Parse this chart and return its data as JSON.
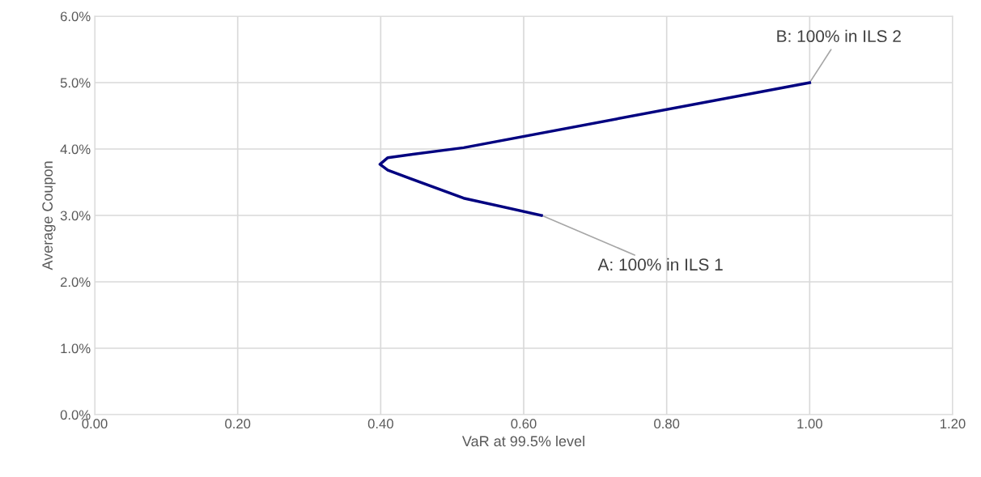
{
  "chart_data": {
    "type": "line",
    "xlabel": "VaR at 99.5% level",
    "ylabel": "Average Coupon",
    "series": [
      {
        "color": "#000080",
        "x": [
          0.625,
          0.516,
          0.41,
          0.399,
          0.41,
          0.516,
          1.0
        ],
        "values": [
          3.0,
          3.26,
          3.68,
          3.77,
          3.87,
          4.02,
          5.0
        ]
      }
    ],
    "xlim": [
      0,
      1.2
    ],
    "ylim": [
      0,
      6
    ],
    "xticks": [
      {
        "value": 0,
        "label": "0.00"
      },
      {
        "value": 0.2,
        "label": "0.20"
      },
      {
        "value": 0.4,
        "label": "0.40"
      },
      {
        "value": 0.6,
        "label": "0.60"
      },
      {
        "value": 0.8,
        "label": "0.80"
      },
      {
        "value": 1.0,
        "label": "1.00"
      },
      {
        "value": 1.2,
        "label": "1.20"
      }
    ],
    "yticks": [
      {
        "value": 0,
        "label": "0.0%"
      },
      {
        "value": 1,
        "label": "1.0%"
      },
      {
        "value": 2,
        "label": "2.0%"
      },
      {
        "value": 3,
        "label": "3.0%"
      },
      {
        "value": 4,
        "label": "4.0%"
      },
      {
        "value": 5,
        "label": "5.0%"
      },
      {
        "value": 6,
        "label": "6.0%"
      }
    ],
    "grid": true,
    "legend": false,
    "marker": "none",
    "line_style": "solid",
    "annotations": [
      {
        "text": "A: 100% in ILS 1",
        "x": 0.625,
        "y": 3.0
      },
      {
        "text": "B: 100% in ILS 2",
        "x": 1.0,
        "y": 5.0
      }
    ]
  }
}
